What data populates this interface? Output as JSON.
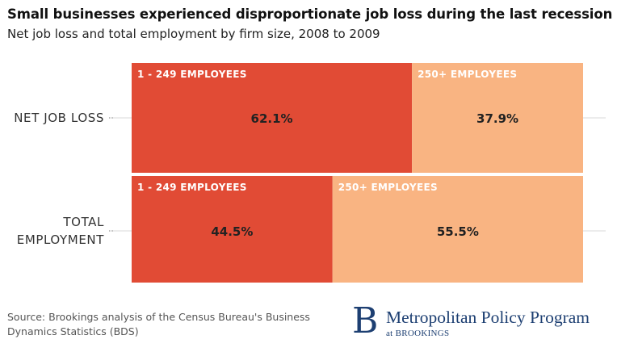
{
  "chart_data": {
    "type": "bar",
    "stacked": "100%",
    "orientation": "horizontal",
    "title": "Small businesses experienced disproportionate job loss during the last recession",
    "subtitle": "Net job loss and total employment by firm size, 2008 to 2009",
    "categories": [
      "NET JOB LOSS",
      "TOTAL\nEMPLOYMENT"
    ],
    "series": [
      {
        "name": "1 - 249 EMPLOYEES",
        "values": [
          62.1,
          44.5
        ],
        "labels": [
          "62.1%",
          "44.5%"
        ],
        "color": "#e14b35"
      },
      {
        "name": "250+ EMPLOYEES",
        "values": [
          37.9,
          55.5
        ],
        "labels": [
          "37.9%",
          "55.5%"
        ],
        "color": "#f9b482"
      }
    ],
    "legend": "inline",
    "grid": false,
    "xlim": [
      0,
      100
    ]
  },
  "footer": {
    "source": "Source: Brookings analysis of the Census Bureau's Business Dynamics Statistics (BDS)"
  },
  "logo": {
    "letter": "B",
    "name": "Metropolitan Policy Program",
    "sub": "at BROOKINGS"
  },
  "colors": {
    "small_firms": "#e14b35",
    "large_firms": "#f9b482",
    "logo": "#1d3f72"
  }
}
